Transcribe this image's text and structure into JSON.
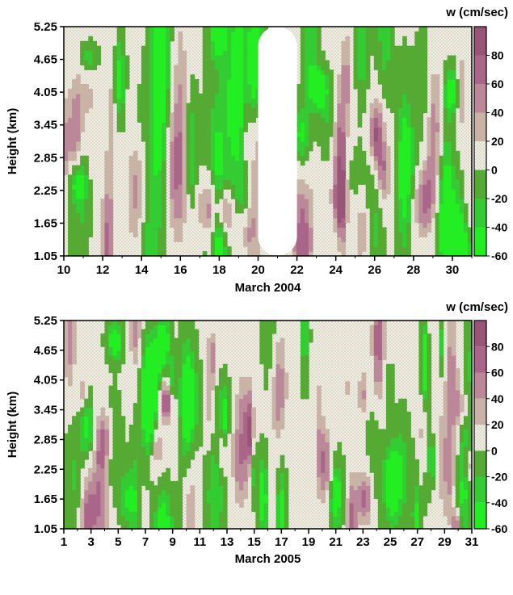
{
  "chart_data": [
    {
      "type": "heatmap",
      "title": "",
      "xlabel": "March 2004",
      "ylabel": "Height (km)",
      "x_ticks": [
        10,
        12,
        14,
        16,
        18,
        20,
        22,
        24,
        26,
        28,
        30
      ],
      "y_ticks": [
        "1.05",
        "1.65",
        "2.25",
        "2.85",
        "3.45",
        "4.05",
        "4.65",
        "5.25"
      ],
      "xlim": [
        10,
        31
      ],
      "ylim": [
        1.05,
        5.25
      ],
      "data_gap_days": [
        20,
        22
      ],
      "colorbar": {
        "label": "w (cm/sec)",
        "ticks": [
          "-60",
          "-40",
          "-20",
          "0",
          "20",
          "40",
          "60",
          "80"
        ],
        "range": [
          -60,
          100
        ]
      },
      "grid": false
    },
    {
      "type": "heatmap",
      "title": "",
      "xlabel": "March 2005",
      "ylabel": "Height (km)",
      "x_ticks": [
        1,
        3,
        5,
        7,
        9,
        11,
        13,
        15,
        17,
        19,
        21,
        23,
        25,
        27,
        29,
        31
      ],
      "y_ticks": [
        "1.05",
        "1.65",
        "2.25",
        "2.85",
        "3.45",
        "4.05",
        "4.65",
        "5.25"
      ],
      "xlim": [
        1,
        31
      ],
      "ylim": [
        1.05,
        5.25
      ],
      "colorbar": {
        "label": "w (cm/sec)",
        "ticks": [
          "-60",
          "-40",
          "-20",
          "0",
          "20",
          "40",
          "60",
          "80"
        ],
        "range": [
          -60,
          100
        ]
      },
      "grid": false
    }
  ],
  "colors": {
    "level_bands": [
      "#22ee22",
      "#33cc33",
      "#55aa33",
      "#f0efe2",
      "#c9b2a6",
      "#bb8899",
      "#aa6688",
      "#995577"
    ]
  }
}
